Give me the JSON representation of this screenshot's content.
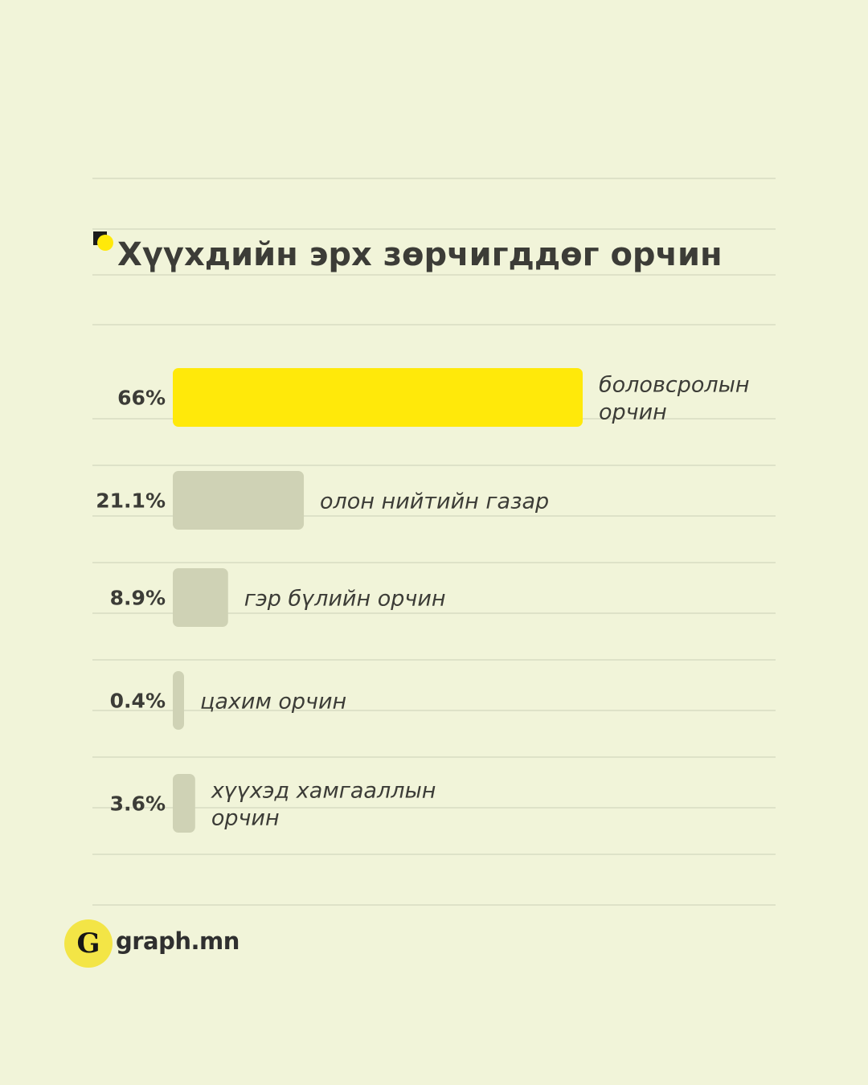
{
  "chart_data": {
    "type": "bar",
    "orientation": "horizontal",
    "title": "Хүүхдийн эрх зөрчигддөг орчин",
    "categories": [
      "боловсролын орчин",
      "олон нийтийн газар",
      "гэр бүлийн орчин",
      "цахим орчин",
      "хүүхэд хамгааллын орчин"
    ],
    "category_lines": [
      [
        "боловсролын",
        "орчин"
      ],
      [
        "олон нийтийн газар"
      ],
      [
        "гэр бүлийн орчин"
      ],
      [
        "цахим орчин"
      ],
      [
        "хүүхэд хамгааллын",
        "орчин"
      ]
    ],
    "values": [
      66,
      21.1,
      8.9,
      0.4,
      3.6
    ],
    "value_labels": [
      "66%",
      "21.1%",
      "8.9%",
      "0.4%",
      "3.6%"
    ],
    "unit": "%",
    "highlight_index": 0,
    "colors": {
      "highlight": "#ffe90a",
      "default": "#cfd2b5",
      "background": "#f1f4d9",
      "text": "#3c3c37",
      "gridline": "#d8dbc2"
    },
    "grid": true,
    "legend": "none"
  },
  "branding": {
    "logo_letter": "G",
    "site": "graph.mn"
  }
}
